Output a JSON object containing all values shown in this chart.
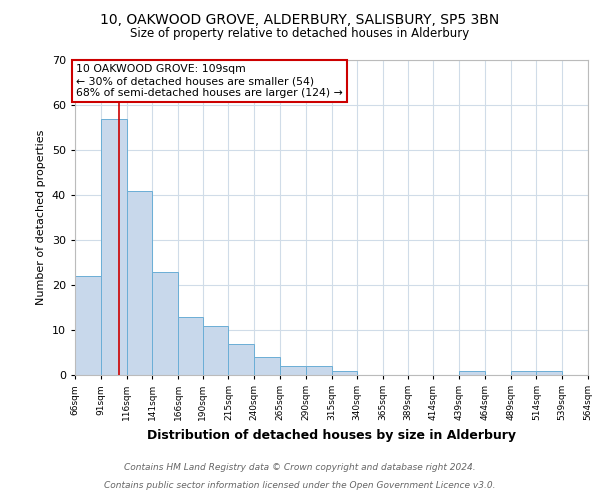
{
  "title1": "10, OAKWOOD GROVE, ALDERBURY, SALISBURY, SP5 3BN",
  "title2": "Size of property relative to detached houses in Alderbury",
  "xlabel": "Distribution of detached houses by size in Alderbury",
  "ylabel": "Number of detached properties",
  "bin_edges": [
    66,
    91,
    116,
    141,
    166,
    190,
    215,
    240,
    265,
    290,
    315,
    340,
    365,
    389,
    414,
    439,
    464,
    489,
    514,
    539,
    564
  ],
  "bin_labels": [
    "66sqm",
    "91sqm",
    "116sqm",
    "141sqm",
    "166sqm",
    "190sqm",
    "215sqm",
    "240sqm",
    "265sqm",
    "290sqm",
    "315sqm",
    "340sqm",
    "365sqm",
    "389sqm",
    "414sqm",
    "439sqm",
    "464sqm",
    "489sqm",
    "514sqm",
    "539sqm",
    "564sqm"
  ],
  "counts": [
    22,
    57,
    41,
    23,
    13,
    11,
    7,
    4,
    2,
    2,
    1,
    0,
    0,
    0,
    0,
    1,
    0,
    1,
    1,
    0
  ],
  "bar_color": "#c8d8eb",
  "bar_edge_color": "#6baed6",
  "vline_x": 109,
  "vline_color": "#cc0000",
  "annotation_text": "10 OAKWOOD GROVE: 109sqm\n← 30% of detached houses are smaller (54)\n68% of semi-detached houses are larger (124) →",
  "annotation_box_color": "#ffffff",
  "annotation_box_edge_color": "#cc0000",
  "ylim": [
    0,
    70
  ],
  "yticks": [
    0,
    10,
    20,
    30,
    40,
    50,
    60,
    70
  ],
  "grid_color": "#d0dce8",
  "footer1": "Contains HM Land Registry data © Crown copyright and database right 2024.",
  "footer2": "Contains public sector information licensed under the Open Government Licence v3.0.",
  "background_color": "#ffffff",
  "plot_bg_color": "#ffffff"
}
